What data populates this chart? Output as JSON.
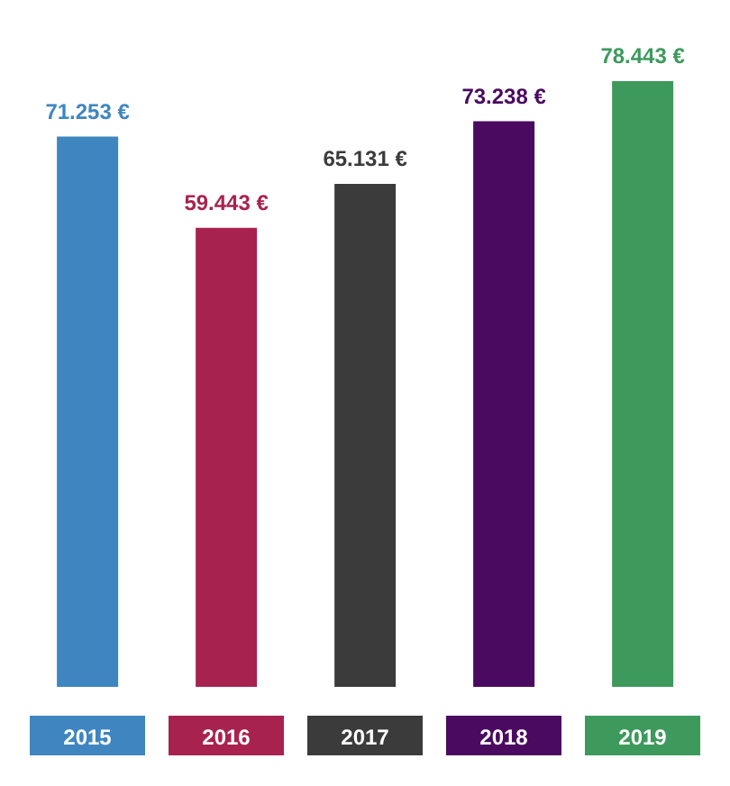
{
  "chart_data": {
    "type": "bar",
    "categories": [
      "2015",
      "2016",
      "2017",
      "2018",
      "2019"
    ],
    "values": [
      71253,
      59443,
      65131,
      73238,
      78443
    ],
    "colors": [
      "#3f86c0",
      "#a8224f",
      "#3b3b3b",
      "#4a0a60",
      "#3d9a5c"
    ],
    "value_labels": [
      "71.253 €",
      "59.443 €",
      "65.131 €",
      "73.238 €",
      "78.443 €"
    ]
  }
}
